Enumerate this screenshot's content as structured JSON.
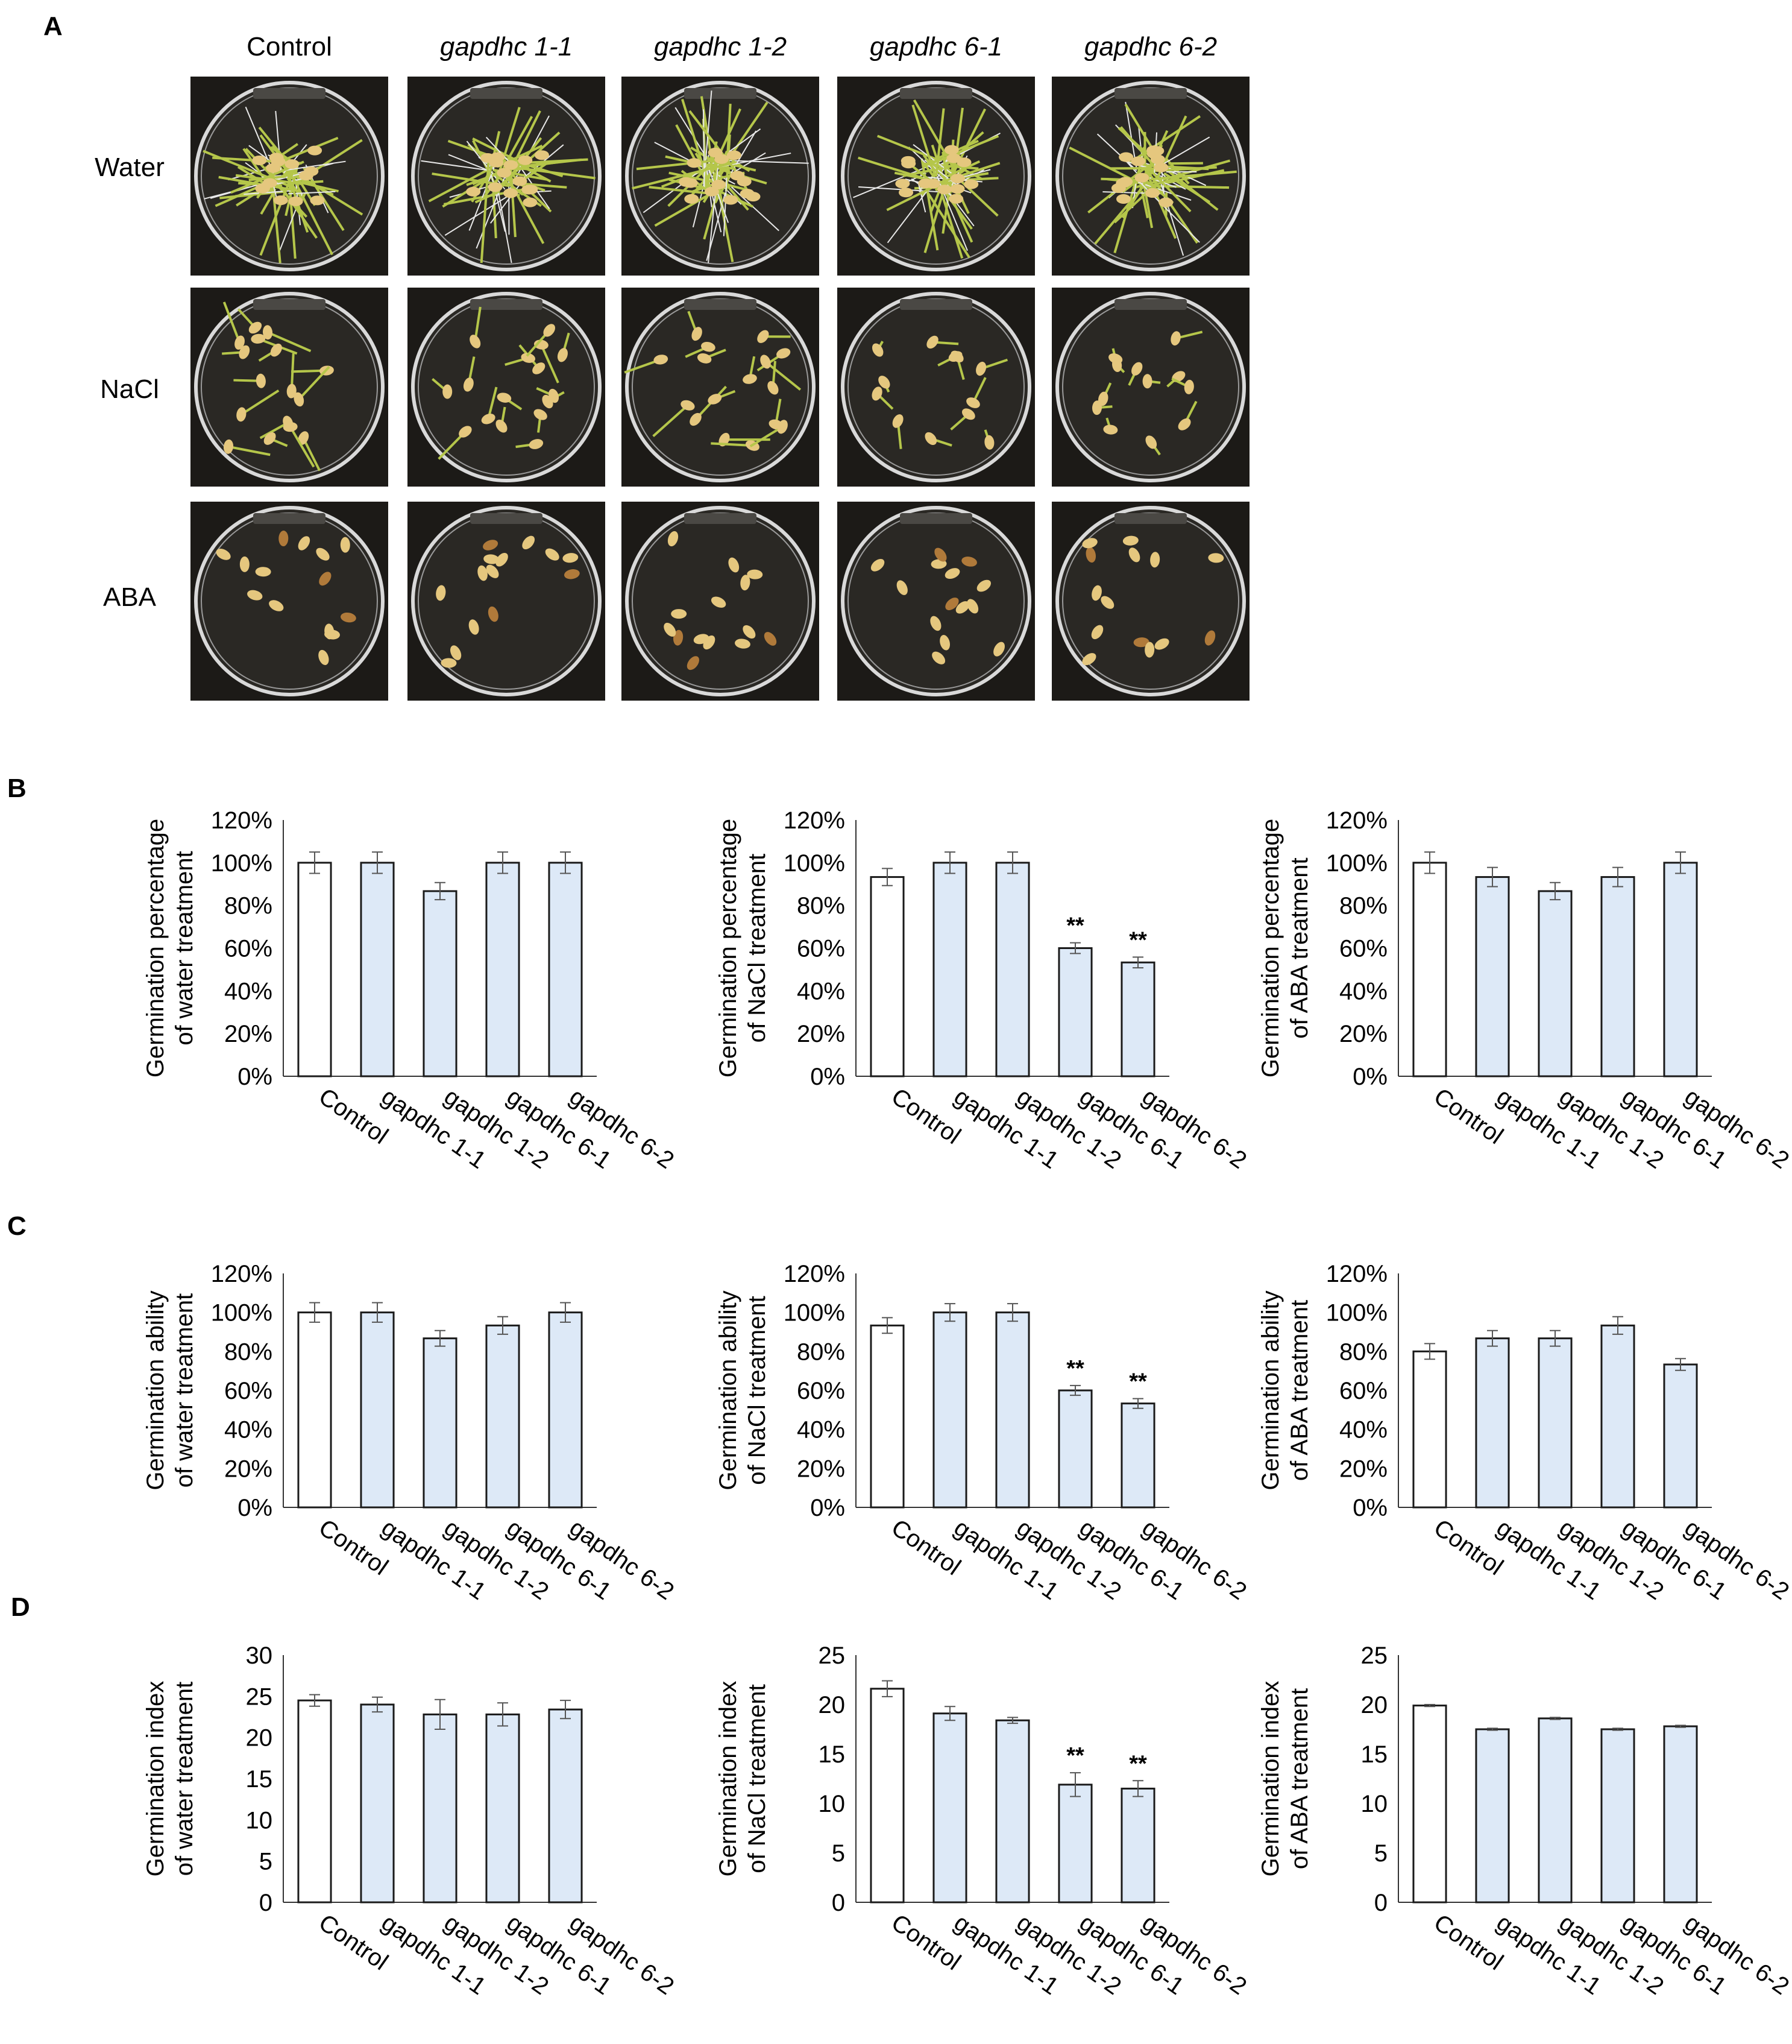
{
  "panel_letters": [
    "A",
    "B",
    "C",
    "D"
  ],
  "photo_grid": {
    "columns": [
      "Control",
      "gapdhc 1-1",
      "gapdhc 1-2",
      "gapdhc 6-1",
      "gapdhc 6-2"
    ],
    "rows": [
      "Water",
      "NaCl",
      "ABA"
    ],
    "cells": [
      [
        "seedlings-long",
        "seedlings-long",
        "seedlings-long",
        "seedlings-long",
        "seedlings-long"
      ],
      [
        "seedlings-short",
        "seedlings-short",
        "seedlings-short",
        "seedlings-few",
        "seedlings-few"
      ],
      [
        "seeds",
        "seeds",
        "seeds",
        "seeds",
        "seeds"
      ]
    ],
    "colors": {
      "dish_bg": "#1c1a17",
      "shoot": "#b5c64a",
      "seed": "#e5c77e",
      "root": "#e8e8e8"
    }
  },
  "colors": {
    "control_bar": "#ffffff",
    "mutant_bar": "#dde9f7",
    "bar_stroke": "#1a1a1a"
  },
  "chart_data": [
    {
      "panel": "B",
      "type": "bar",
      "ylabel": [
        "Germination percentage",
        "of water  treatment"
      ],
      "categories": [
        "Control",
        "gapdhc 1-1",
        "gapdhc 1-2",
        "gapdhc 6-1",
        "gapdhc 6-2"
      ],
      "values": [
        100,
        100,
        86.7,
        100,
        100
      ],
      "errors": [
        5,
        5,
        4,
        5,
        5
      ],
      "significance": [
        "",
        "",
        "",
        "",
        ""
      ],
      "ylim": [
        0,
        120
      ],
      "yticks": [
        0,
        20,
        40,
        60,
        80,
        100,
        120
      ],
      "tick_labels": [
        "0%",
        "20%",
        "40%",
        "60%",
        "80%",
        "100%",
        "120%"
      ],
      "grid": false,
      "legend": false
    },
    {
      "panel": "B",
      "type": "bar",
      "ylabel": [
        "Germination percentage",
        "of NaCl  treatment"
      ],
      "categories": [
        "Control",
        "gapdhc 1-1",
        "gapdhc 1-2",
        "gapdhc 6-1",
        "gapdhc 6-2"
      ],
      "values": [
        93.3,
        100,
        100,
        60,
        53.3
      ],
      "errors": [
        4,
        5,
        5,
        2.5,
        2.5
      ],
      "significance": [
        "",
        "",
        "",
        "**",
        "**"
      ],
      "ylim": [
        0,
        120
      ],
      "yticks": [
        0,
        20,
        40,
        60,
        80,
        100,
        120
      ],
      "tick_labels": [
        "0%",
        "20%",
        "40%",
        "60%",
        "80%",
        "100%",
        "120%"
      ],
      "grid": false,
      "legend": false
    },
    {
      "panel": "B",
      "type": "bar",
      "ylabel": [
        "Germination percentage",
        "of ABA  treatment"
      ],
      "categories": [
        "Control",
        "gapdhc 1-1",
        "gapdhc 1-2",
        "gapdhc 6-1",
        "gapdhc 6-2"
      ],
      "values": [
        100,
        93.3,
        86.7,
        93.3,
        100
      ],
      "errors": [
        5,
        4.5,
        4,
        4.5,
        5
      ],
      "significance": [
        "",
        "",
        "",
        "",
        ""
      ],
      "ylim": [
        0,
        120
      ],
      "yticks": [
        0,
        20,
        40,
        60,
        80,
        100,
        120
      ],
      "tick_labels": [
        "0%",
        "20%",
        "40%",
        "60%",
        "80%",
        "100%",
        "120%"
      ],
      "grid": false,
      "legend": false
    },
    {
      "panel": "C",
      "type": "bar",
      "ylabel": [
        "Germination ability",
        "of water treatment"
      ],
      "categories": [
        "Control",
        "gapdhc 1-1",
        "gapdhc 1-2",
        "gapdhc 6-1",
        "gapdhc 6-2"
      ],
      "values": [
        100,
        100,
        86.7,
        93.3,
        100
      ],
      "errors": [
        5,
        5,
        4,
        4.5,
        5
      ],
      "significance": [
        "",
        "",
        "",
        "",
        ""
      ],
      "ylim": [
        0,
        120
      ],
      "yticks": [
        0,
        20,
        40,
        60,
        80,
        100,
        120
      ],
      "tick_labels": [
        "0%",
        "20%",
        "40%",
        "60%",
        "80%",
        "100%",
        "120%"
      ],
      "grid": false,
      "legend": false
    },
    {
      "panel": "C",
      "type": "bar",
      "ylabel": [
        "Germination ability",
        "of NaCl treatment"
      ],
      "categories": [
        "Control",
        "gapdhc 1-1",
        "gapdhc 1-2",
        "gapdhc 6-1",
        "gapdhc 6-2"
      ],
      "values": [
        93.3,
        100,
        100,
        60,
        53.3
      ],
      "errors": [
        4,
        4.5,
        4.5,
        2.5,
        2.5
      ],
      "significance": [
        "",
        "",
        "",
        "**",
        "**"
      ],
      "ylim": [
        0,
        120
      ],
      "yticks": [
        0,
        20,
        40,
        60,
        80,
        100,
        120
      ],
      "tick_labels": [
        "0%",
        "20%",
        "40%",
        "60%",
        "80%",
        "100%",
        "120%"
      ],
      "grid": false,
      "legend": false
    },
    {
      "panel": "C",
      "type": "bar",
      "ylabel": [
        "Germination ability",
        "of ABA treatment"
      ],
      "categories": [
        "Control",
        "gapdhc 1-1",
        "gapdhc 1-2",
        "gapdhc 6-1",
        "gapdhc 6-2"
      ],
      "values": [
        80,
        86.7,
        86.7,
        93.3,
        73.3
      ],
      "errors": [
        4,
        4,
        4,
        4.5,
        3
      ],
      "significance": [
        "",
        "",
        "",
        "",
        ""
      ],
      "ylim": [
        0,
        120
      ],
      "yticks": [
        0,
        20,
        40,
        60,
        80,
        100,
        120
      ],
      "tick_labels": [
        "0%",
        "20%",
        "40%",
        "60%",
        "80%",
        "100%",
        "120%"
      ],
      "grid": false,
      "legend": false
    },
    {
      "panel": "D",
      "type": "bar",
      "ylabel": [
        "Germination index",
        "of water treatment"
      ],
      "categories": [
        "Control",
        "gapdhc 1-1",
        "gapdhc 1-2",
        "gapdhc 6-1",
        "gapdhc 6-2"
      ],
      "values": [
        24.5,
        24,
        22.8,
        22.8,
        23.4
      ],
      "errors": [
        0.7,
        0.9,
        1.8,
        1.4,
        1.1
      ],
      "significance": [
        "",
        "",
        "",
        "",
        ""
      ],
      "ylim": [
        0,
        30
      ],
      "yticks": [
        0,
        5,
        10,
        15,
        20,
        25,
        30
      ],
      "tick_labels": [
        "0",
        "5",
        "10",
        "15",
        "20",
        "25",
        "30"
      ],
      "grid": false,
      "legend": false
    },
    {
      "panel": "D",
      "type": "bar",
      "ylabel": [
        "Germination index",
        "of NaCl treatment"
      ],
      "categories": [
        "Control",
        "gapdhc 1-1",
        "gapdhc 1-2",
        "gapdhc 6-1",
        "gapdhc 6-2"
      ],
      "values": [
        21.6,
        19.1,
        18.4,
        11.9,
        11.5
      ],
      "errors": [
        0.8,
        0.7,
        0.3,
        1.2,
        0.8
      ],
      "significance": [
        "",
        "",
        "",
        "**",
        "**"
      ],
      "ylim": [
        0,
        25
      ],
      "yticks": [
        0,
        5,
        10,
        15,
        20,
        25
      ],
      "tick_labels": [
        "0",
        "5",
        "10",
        "15",
        "20",
        "25"
      ],
      "grid": false,
      "legend": false
    },
    {
      "panel": "D",
      "type": "bar",
      "ylabel": [
        "Germination index",
        "of ABA treatment"
      ],
      "categories": [
        "Control",
        "gapdhc 1-1",
        "gapdhc 1-2",
        "gapdhc 6-1",
        "gapdhc 6-2"
      ],
      "values": [
        19.9,
        17.5,
        18.6,
        17.5,
        17.8
      ],
      "errors": [
        0.1,
        0.1,
        0.1,
        0.1,
        0.1
      ],
      "significance": [
        "",
        "",
        "",
        "",
        ""
      ],
      "ylim": [
        0,
        25
      ],
      "yticks": [
        0,
        5,
        10,
        15,
        20,
        25
      ],
      "tick_labels": [
        "0",
        "5",
        "10",
        "15",
        "20",
        "25"
      ],
      "grid": false,
      "legend": false
    }
  ]
}
